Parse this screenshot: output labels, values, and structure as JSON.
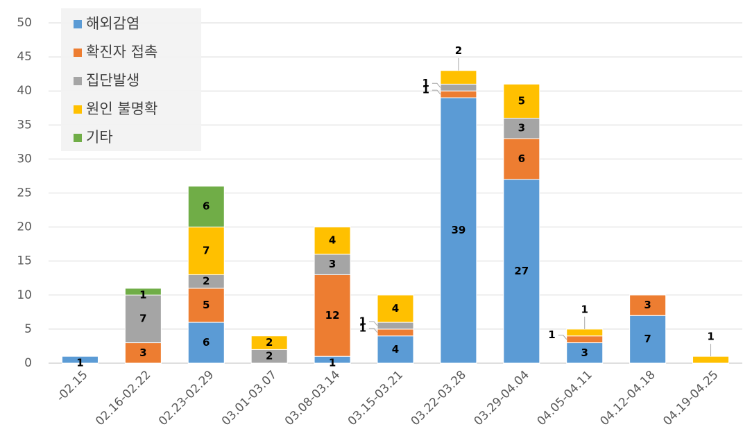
{
  "chart_data": {
    "type": "stacked_bar",
    "categories": [
      "-02.15",
      "02.16-02.22",
      "02.23-02.29",
      "03.01-03.07",
      "03.08-03.14",
      "03.15-03.21",
      "03.22-03.28",
      "03.29-04.04",
      "04.05-04.11",
      "04.12-04.18",
      "04.19-04.25"
    ],
    "series": [
      {
        "name": "해외감염",
        "color": "#5b9bd5",
        "values": [
          1,
          0,
          6,
          0,
          1,
          4,
          39,
          27,
          3,
          7,
          0
        ]
      },
      {
        "name": "확진자 접촉",
        "color": "#ed7d31",
        "values": [
          0,
          3,
          5,
          0,
          12,
          1,
          1,
          6,
          1,
          3,
          0
        ]
      },
      {
        "name": "집단발생",
        "color": "#a5a5a5",
        "values": [
          0,
          7,
          2,
          2,
          3,
          1,
          1,
          3,
          0,
          0,
          0
        ]
      },
      {
        "name": "원인 불명확",
        "color": "#ffc000",
        "values": [
          0,
          0,
          7,
          2,
          4,
          4,
          2,
          5,
          1,
          0,
          1
        ]
      },
      {
        "name": "기타",
        "color": "#70ad47",
        "values": [
          0,
          1,
          6,
          0,
          0,
          0,
          0,
          0,
          0,
          0,
          0
        ]
      }
    ],
    "ylim": [
      0,
      50
    ],
    "yticks": [
      0,
      5,
      10,
      15,
      20,
      25,
      30,
      35,
      40,
      45,
      50
    ],
    "grid": true,
    "legend": "top-left"
  }
}
